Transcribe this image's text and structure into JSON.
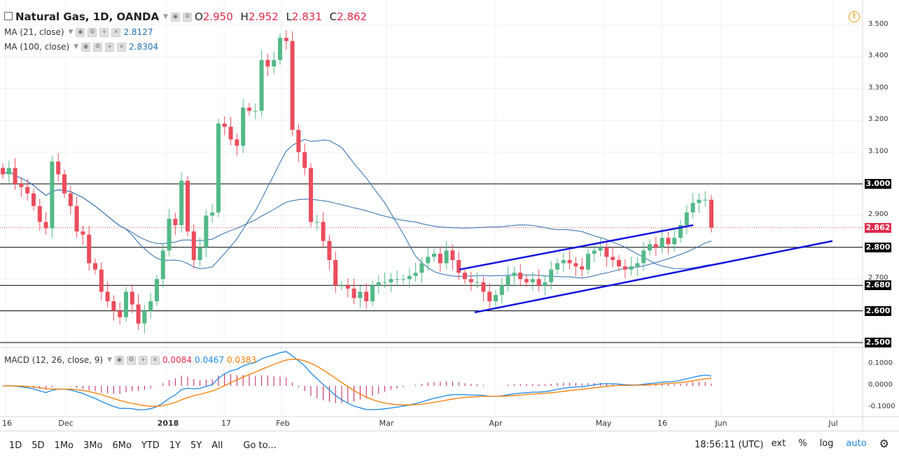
{
  "header": {
    "symbol": "Natural Gas, 1D, OANDA",
    "open_label": "O",
    "open": "2.950",
    "high_label": "H",
    "high": "2.952",
    "low_label": "L",
    "low": "2.831",
    "close_label": "C",
    "close": "2.862"
  },
  "indicators": {
    "ma21": {
      "label": "MA (21, close)",
      "value": "2.8127"
    },
    "ma100": {
      "label": "MA (100, close)",
      "value": "2.8304"
    },
    "macd": {
      "label": "MACD (12, 26, close, 9)",
      "hist": "0.0084",
      "macd": "0.0467",
      "signal": "0.0383"
    }
  },
  "price_axis": {
    "ticks": [
      "3.500",
      "3.400",
      "3.300",
      "3.200",
      "3.100",
      "3.000",
      "2.900",
      "2.800",
      "2.700",
      "2.600",
      "2.500"
    ],
    "tick_values": [
      3.5,
      3.4,
      3.3,
      3.2,
      3.1,
      3.0,
      2.9,
      2.8,
      2.7,
      2.6,
      2.5
    ],
    "level_tags": [
      {
        "label": "3.000",
        "value": 3.0,
        "color": "#000000"
      },
      {
        "label": "2.862",
        "value": 2.862,
        "color": "#e0294a"
      },
      {
        "label": "2.800",
        "value": 2.8,
        "color": "#000000"
      },
      {
        "label": "2.680",
        "value": 2.68,
        "color": "#000000"
      },
      {
        "label": "2.600",
        "value": 2.6,
        "color": "#000000"
      },
      {
        "label": "2.500",
        "value": 2.5,
        "color": "#000000"
      }
    ]
  },
  "macd_axis": {
    "ticks": [
      "0.1000",
      "0.0000",
      "-0.1000"
    ],
    "tick_values": [
      0.1,
      0.0,
      -0.1
    ]
  },
  "time_axis": {
    "labels": [
      "16",
      "Dec",
      "2018",
      "17",
      "Feb",
      "Mar",
      "Apr",
      "May",
      "16",
      "Jun",
      "Jul"
    ]
  },
  "bottom_bar": {
    "periods": [
      "1D",
      "5D",
      "1Mo",
      "3Mo",
      "6Mo",
      "YTD",
      "1Y",
      "5Y",
      "All"
    ],
    "goto": "Go to...",
    "time": "18:56:11 (UTC)",
    "ext": "ext",
    "percent": "%",
    "log": "log",
    "auto": "auto"
  },
  "colors": {
    "up": "#53b987",
    "down": "#eb4d5c",
    "ma": "#2b6cb0",
    "trendline": "#1414e0",
    "macd_line": "#1e88e5",
    "signal_line": "#f57c00",
    "hist": "#c2185b",
    "alert": "#f39c12"
  },
  "chart_data": {
    "type": "candlestick",
    "title": "Natural Gas, 1D, OANDA",
    "price_range": [
      2.5,
      3.5
    ],
    "horizontal_levels": [
      3.0,
      2.8,
      2.68,
      2.6,
      2.5
    ],
    "current_price": 2.862,
    "close_series": [
      3.03,
      3.05,
      3.0,
      2.99,
      2.97,
      2.93,
      2.88,
      2.86,
      3.07,
      3.03,
      2.97,
      2.93,
      2.85,
      2.84,
      2.75,
      2.73,
      2.66,
      2.63,
      2.6,
      2.58,
      2.66,
      2.62,
      2.56,
      2.6,
      2.63,
      2.7,
      2.79,
      2.89,
      2.87,
      3.01,
      2.85,
      2.76,
      2.8,
      2.9,
      2.91,
      3.19,
      3.18,
      3.14,
      3.12,
      3.24,
      3.23,
      3.23,
      3.39,
      3.37,
      3.39,
      3.46,
      3.45,
      3.17,
      3.1,
      3.05,
      2.88,
      2.88,
      2.82,
      2.76,
      2.68,
      2.68,
      2.67,
      2.64,
      2.66,
      2.63,
      2.68,
      2.69,
      2.69,
      2.7,
      2.7,
      2.7,
      2.71,
      2.72,
      2.75,
      2.77,
      2.78,
      2.75,
      2.79,
      2.76,
      2.72,
      2.7,
      2.69,
      2.69,
      2.66,
      2.63,
      2.65,
      2.68,
      2.71,
      2.72,
      2.7,
      2.69,
      2.7,
      2.68,
      2.69,
      2.73,
      2.75,
      2.76,
      2.75,
      2.74,
      2.73,
      2.78,
      2.79,
      2.8,
      2.77,
      2.76,
      2.74,
      2.73,
      2.74,
      2.75,
      2.79,
      2.81,
      2.8,
      2.83,
      2.81,
      2.83,
      2.87,
      2.91,
      2.94,
      2.95,
      2.95,
      2.862
    ]
  }
}
